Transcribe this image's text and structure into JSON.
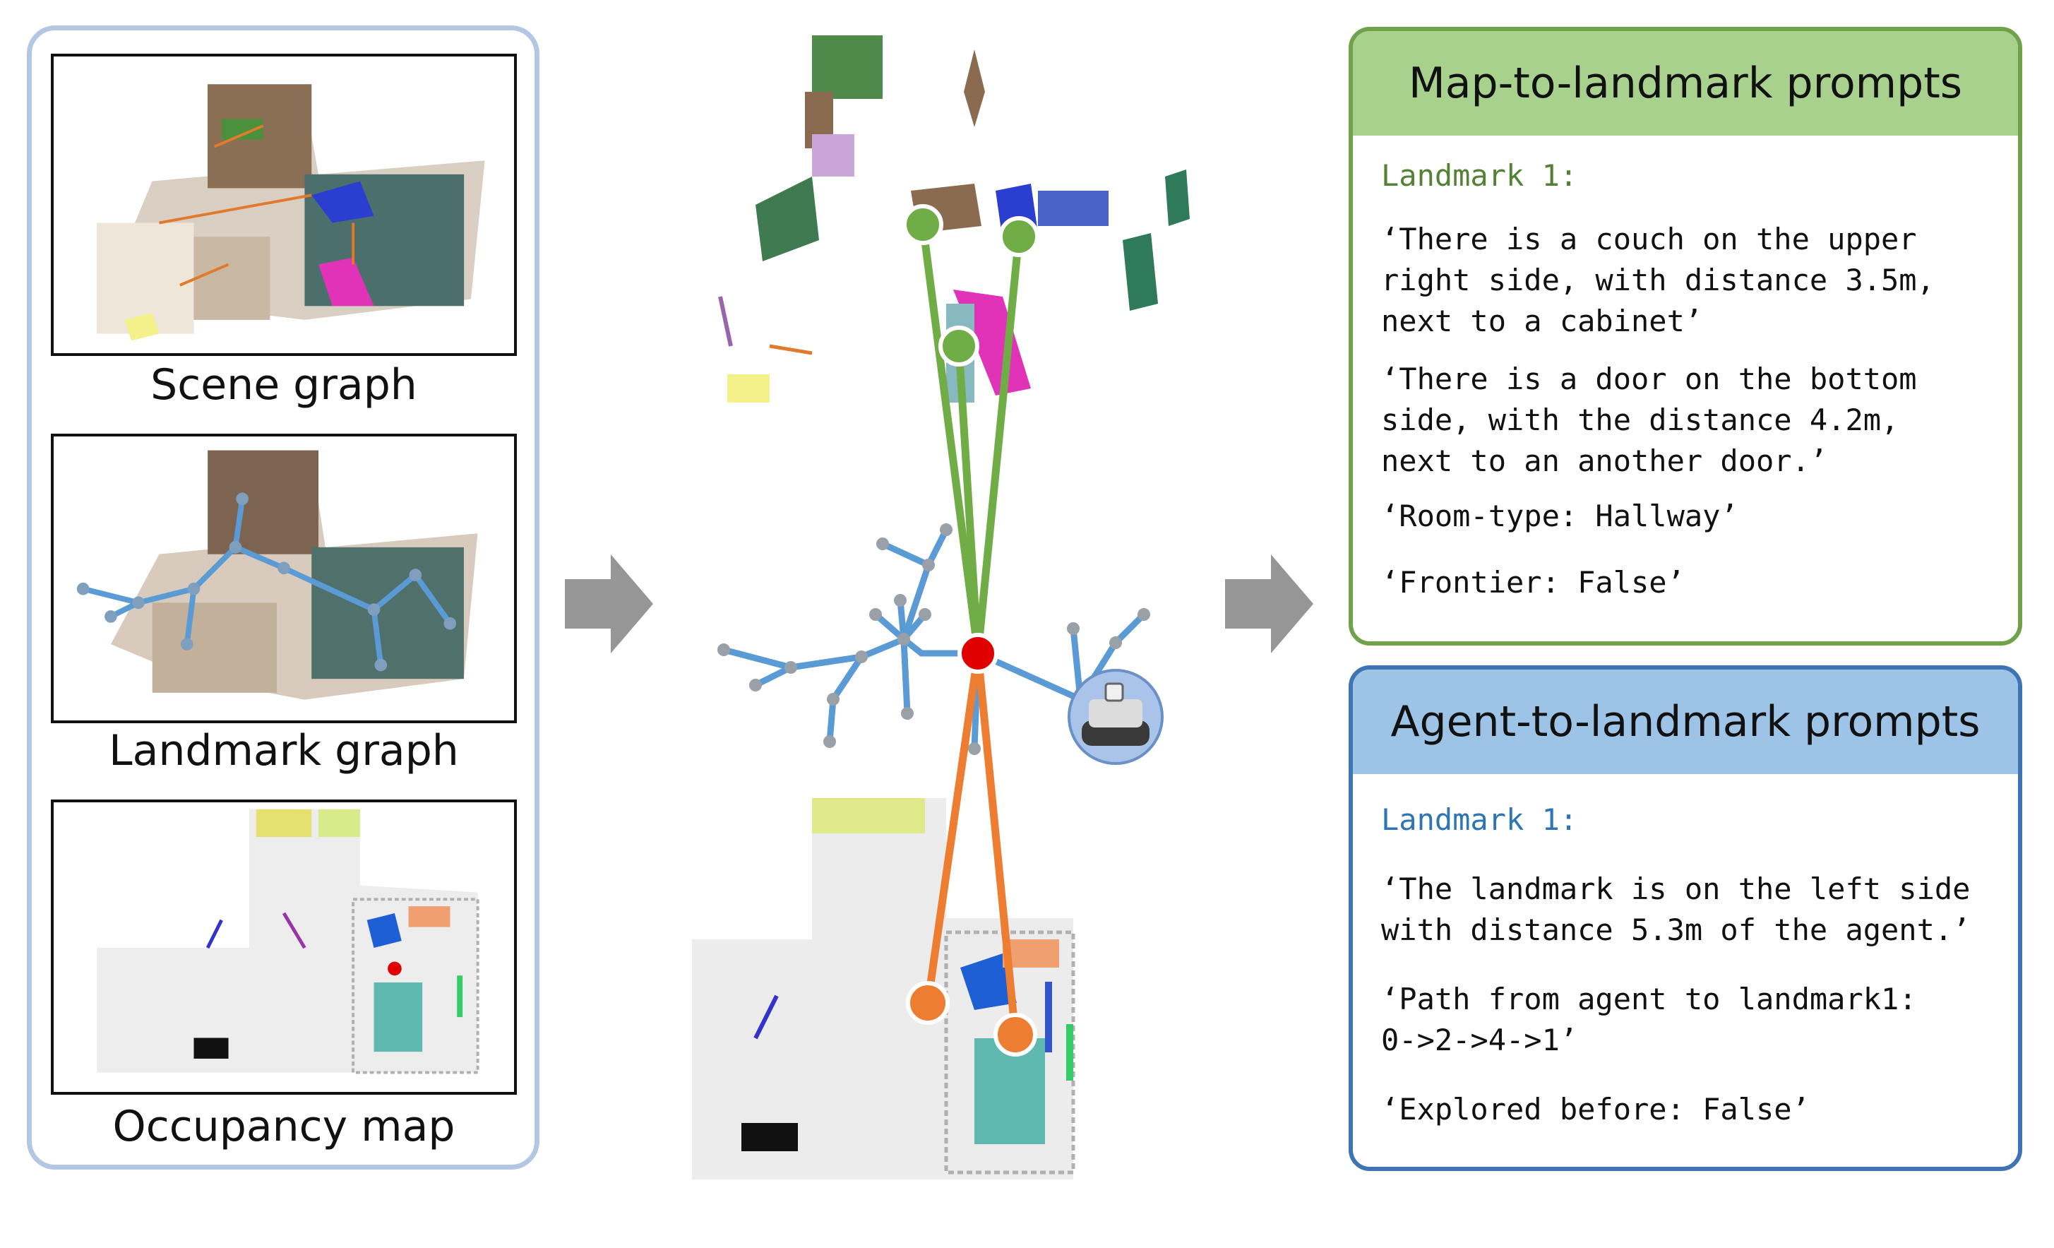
{
  "left_panel": {
    "captions": [
      "Scene graph",
      "Landmark graph",
      "Occupancy map"
    ]
  },
  "map_to_landmark": {
    "title": "Map-to-landmark prompts",
    "landmark_label": "Landmark 1:",
    "lines": [
      "‘There is a couch on the upper\nright side, with distance 3.5m,\nnext to a cabinet’",
      "‘There is a door on the bottom\nside, with the distance 4.2m,\nnext to an another door.’",
      "‘Room-type: Hallway’",
      "‘Frontier: False’"
    ]
  },
  "agent_to_landmark": {
    "title": "Agent-to-landmark prompts",
    "landmark_label": "Landmark 1:",
    "lines": [
      "‘The landmark is on the left side\nwith distance 5.3m of the agent.’",
      "‘Path from agent to landmark1:\n0->2->4->1’",
      "‘Explored before: False’"
    ]
  },
  "colors": {
    "left_border": "#b3c6e3",
    "green_header": "#a9d18e",
    "green_border": "#6fa24a",
    "blue_header": "#9dc3e6",
    "blue_border": "#3e74b3",
    "agent_node": "#e00000",
    "landmark_green": "#70ad47",
    "landmark_orange": "#ed7d31",
    "graph_edge": "#5b9bd5"
  }
}
